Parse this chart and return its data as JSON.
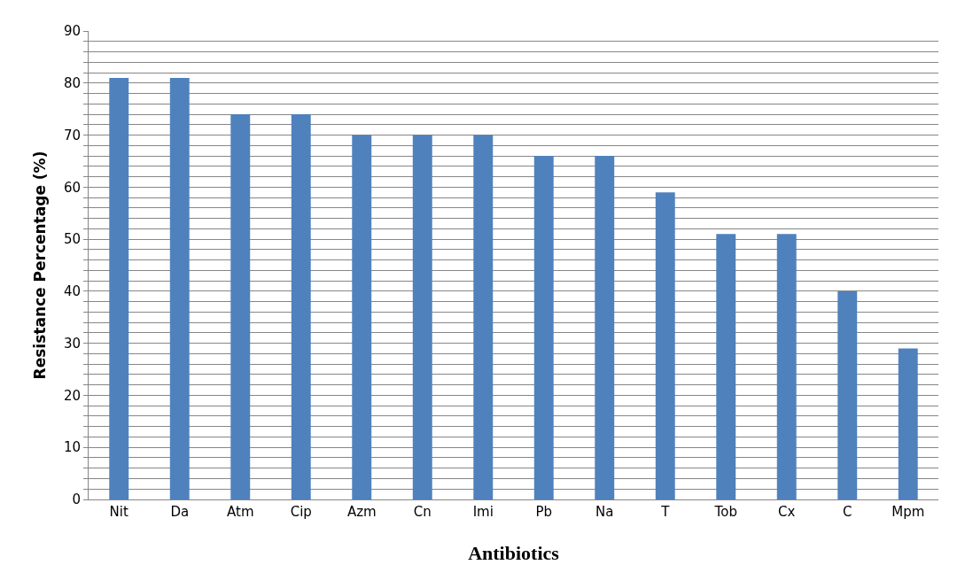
{
  "chart_data": {
    "type": "bar",
    "xlabel": "Antibiotics",
    "ylabel": "Resistance Percentage (%)",
    "categories": [
      "Nit",
      "Da",
      "Atm",
      "Cip",
      "Azm",
      "Cn",
      "Imi",
      "Pb",
      "Na",
      "T",
      "Tob",
      "Cx",
      "C",
      "Mpm"
    ],
    "values": [
      81,
      81,
      74,
      74,
      70,
      70,
      70,
      66,
      66,
      59,
      51,
      51,
      40,
      29
    ],
    "color": "#4f81bd",
    "ylim": [
      0,
      90
    ],
    "yticks": [
      0,
      {
        "value": 2,
        "label": null
      },
      {
        "value": 4,
        "label": null
      },
      {
        "value": 6,
        "label": null
      },
      {
        "value": 8,
        "label": null
      },
      10,
      {
        "value": 12,
        "label": null
      },
      {
        "value": 14,
        "label": null
      },
      {
        "value": 16,
        "label": null
      },
      {
        "value": 18,
        "label": null
      },
      20,
      {
        "value": 22,
        "label": null
      },
      {
        "value": 24,
        "label": null
      },
      {
        "value": 26,
        "label": null
      },
      {
        "value": 28,
        "label": null
      },
      30,
      {
        "value": 32,
        "label": null
      },
      {
        "value": 34,
        "label": null
      },
      {
        "value": 36,
        "label": null
      },
      {
        "value": 38,
        "label": null
      },
      40,
      {
        "value": 42,
        "label": null
      },
      {
        "value": 44,
        "label": null
      },
      {
        "value": 46,
        "label": null
      },
      {
        "value": 48,
        "label": null
      },
      50,
      {
        "value": 52,
        "label": null
      },
      {
        "value": 54,
        "label": null
      },
      {
        "value": 56,
        "label": null
      },
      {
        "value": 58,
        "label": null
      },
      60,
      {
        "value": 62,
        "label": null
      },
      {
        "value": 64,
        "label": null
      },
      {
        "value": 66,
        "label": null
      },
      {
        "value": 68,
        "label": null
      },
      70,
      {
        "value": 72,
        "label": null
      },
      {
        "value": 74,
        "label": null
      },
      {
        "value": 76,
        "label": null
      },
      {
        "value": 78,
        "label": null
      },
      80,
      {
        "value": 82,
        "label": null
      },
      {
        "value": 84,
        "label": null
      },
      {
        "value": 86,
        "label": null
      },
      {
        "value": 88,
        "label": null
      },
      90
    ],
    "grid": "y"
  }
}
